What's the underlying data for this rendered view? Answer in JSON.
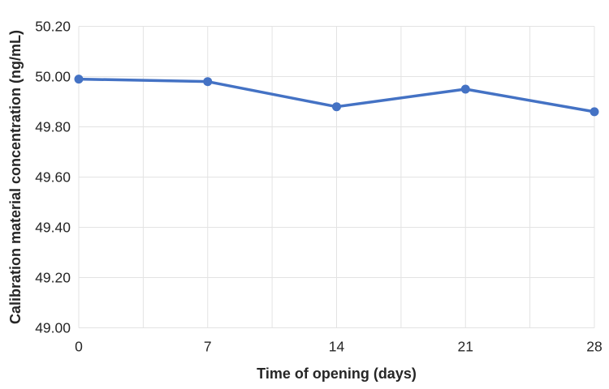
{
  "chart_data": {
    "type": "line",
    "title": "",
    "xlabel": "Time of opening (days)",
    "ylabel": "Calibration material concentration (ng/mL)",
    "x": [
      0,
      7,
      14,
      21,
      28
    ],
    "series": [
      {
        "name": "Calibration material concentration",
        "values": [
          49.99,
          49.98,
          49.88,
          49.95,
          49.86
        ]
      }
    ],
    "xlim": [
      0,
      28
    ],
    "ylim": [
      49.0,
      50.2
    ],
    "x_ticks": [
      {
        "value": 0,
        "label": "0"
      },
      {
        "value": 7,
        "label": "7"
      },
      {
        "value": 14,
        "label": "14"
      },
      {
        "value": 21,
        "label": "21"
      },
      {
        "value": 28,
        "label": "28"
      }
    ],
    "y_ticks": [
      {
        "value": 50.2,
        "label": "50.20"
      },
      {
        "value": 50.0,
        "label": "50.00"
      },
      {
        "value": 49.8,
        "label": "49.80"
      },
      {
        "value": 49.6,
        "label": "49.60"
      },
      {
        "value": 49.4,
        "label": "49.40"
      },
      {
        "value": 49.2,
        "label": "49.20"
      },
      {
        "value": 49.0,
        "label": "49.00"
      }
    ],
    "x_grid_step": 3.5,
    "grid": true,
    "legend": "none",
    "marker": "circle",
    "colors": {
      "line": "#4472C4",
      "grid": "#e3e3e3",
      "text": "#262626",
      "background": "#ffffff"
    }
  }
}
